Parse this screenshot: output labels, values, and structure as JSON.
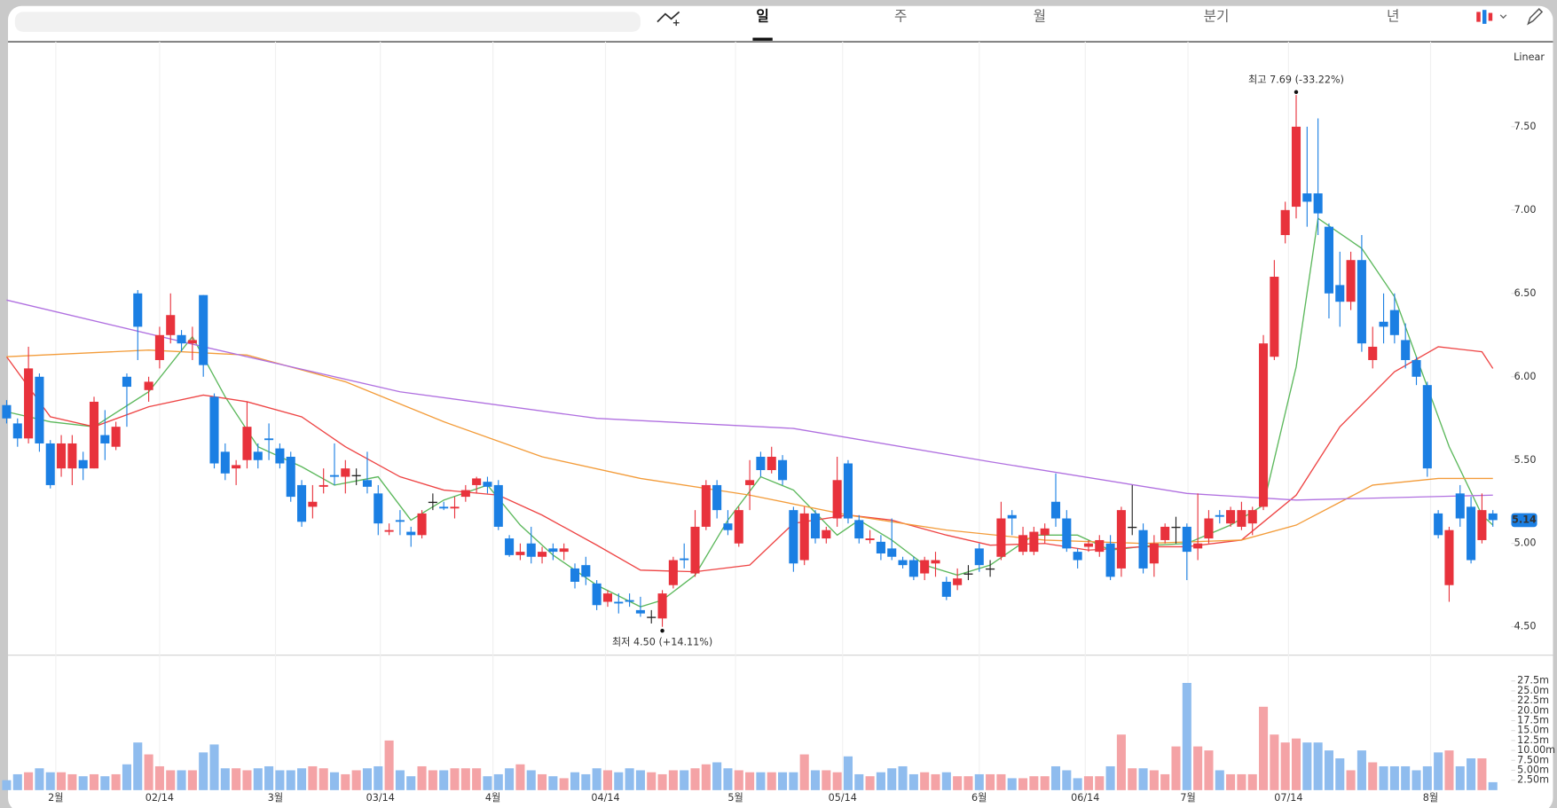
{
  "ui": {
    "tabs": [
      "일",
      "주",
      "월",
      "분기",
      "년"
    ],
    "scale_mode": "Linear"
  },
  "chart_data": {
    "type": "candlestick",
    "open": [
      5.83,
      5.72,
      5.63,
      6.0,
      5.6,
      5.45,
      5.45,
      5.5,
      5.45,
      5.65,
      5.58,
      6.0,
      6.5,
      5.92,
      6.1,
      6.25,
      6.25,
      6.2,
      6.49,
      5.88,
      5.55,
      5.45,
      5.5,
      5.55,
      5.63,
      5.57,
      5.52,
      5.35,
      5.22,
      5.34,
      5.41,
      5.4,
      5.41,
      5.38,
      5.3,
      5.07,
      5.14,
      5.07,
      5.05,
      5.25,
      5.22,
      5.21,
      5.28,
      5.35,
      5.37,
      5.35,
      5.03,
      4.93,
      5.0,
      4.92,
      4.97,
      4.95,
      4.85,
      4.87,
      4.76,
      4.65,
      4.65,
      4.66,
      4.6,
      4.56,
      4.55,
      4.75,
      4.91,
      4.82,
      5.1,
      5.35,
      5.12,
      5.0,
      5.35,
      5.52,
      5.44,
      5.5,
      5.2,
      4.9,
      5.18,
      5.03,
      5.15,
      5.48,
      5.14,
      5.02,
      5.01,
      4.97,
      4.9,
      4.9,
      4.82,
      4.88,
      4.77,
      4.75,
      4.82,
      4.97,
      4.85,
      4.92,
      5.17,
      4.95,
      4.95,
      5.05,
      5.25,
      5.15,
      4.95,
      4.98,
      4.95,
      5.0,
      4.85,
      5.1,
      5.08,
      4.88,
      5.02,
      5.1,
      5.1,
      4.97,
      5.03,
      5.17,
      5.12,
      5.1,
      5.12,
      5.22,
      6.12,
      6.85,
      7.02,
      7.1,
      7.1,
      6.9,
      6.55,
      6.45,
      6.7,
      6.1,
      6.33,
      6.4,
      6.22,
      6.1,
      5.95,
      5.18,
      4.75,
      5.3,
      5.22,
      5.02,
      5.18
    ],
    "high": [
      5.86,
      5.75,
      6.18,
      6.02,
      5.62,
      5.65,
      5.65,
      5.55,
      5.88,
      5.8,
      5.73,
      6.02,
      6.52,
      6.0,
      6.3,
      6.5,
      6.28,
      6.3,
      6.49,
      5.9,
      5.6,
      5.5,
      5.85,
      5.6,
      5.72,
      5.6,
      5.55,
      5.38,
      5.35,
      5.45,
      5.6,
      5.5,
      5.45,
      5.55,
      5.35,
      5.12,
      5.2,
      5.1,
      5.2,
      5.3,
      5.25,
      5.28,
      5.35,
      5.4,
      5.4,
      5.38,
      5.05,
      5.0,
      5.1,
      4.98,
      5.0,
      5.0,
      4.88,
      4.92,
      4.78,
      4.72,
      4.7,
      4.7,
      4.68,
      4.6,
      4.72,
      4.92,
      5.0,
      5.2,
      5.38,
      5.38,
      5.2,
      5.22,
      5.5,
      5.55,
      5.58,
      5.53,
      5.22,
      5.22,
      5.2,
      5.1,
      5.52,
      5.5,
      5.17,
      5.08,
      5.05,
      5.15,
      4.92,
      4.92,
      4.92,
      4.95,
      4.8,
      4.85,
      4.87,
      5.0,
      4.9,
      5.25,
      5.2,
      5.1,
      5.1,
      5.12,
      5.42,
      5.2,
      4.97,
      5.02,
      5.05,
      5.05,
      5.22,
      5.35,
      5.12,
      5.05,
      5.12,
      5.16,
      5.12,
      5.3,
      5.2,
      5.2,
      5.22,
      5.25,
      5.22,
      6.25,
      6.7,
      7.05,
      7.69,
      7.5,
      7.55,
      6.92,
      6.75,
      6.75,
      6.85,
      6.3,
      6.5,
      6.5,
      6.32,
      6.12,
      5.97,
      5.2,
      5.1,
      5.35,
      5.28,
      5.3,
      5.2
    ],
    "low": [
      5.72,
      5.58,
      5.6,
      5.55,
      5.33,
      5.4,
      5.35,
      5.38,
      5.45,
      5.5,
      5.56,
      5.7,
      6.1,
      5.85,
      6.05,
      6.2,
      6.15,
      6.1,
      6.0,
      5.45,
      5.38,
      5.35,
      5.45,
      5.45,
      5.5,
      5.45,
      5.25,
      5.1,
      5.15,
      5.3,
      5.35,
      5.3,
      5.35,
      5.3,
      5.05,
      5.05,
      5.05,
      4.98,
      5.03,
      5.2,
      5.2,
      5.15,
      5.25,
      5.3,
      5.3,
      5.08,
      4.92,
      4.9,
      4.88,
      4.88,
      4.9,
      4.9,
      4.73,
      4.75,
      4.6,
      4.62,
      4.58,
      4.62,
      4.56,
      4.52,
      4.5,
      4.73,
      4.85,
      4.8,
      5.08,
      5.15,
      5.05,
      4.98,
      5.2,
      5.4,
      5.42,
      5.35,
      4.83,
      4.87,
      5.0,
      5.0,
      5.1,
      5.12,
      5.0,
      5.0,
      4.9,
      4.9,
      4.85,
      4.78,
      4.78,
      4.8,
      4.66,
      4.72,
      4.78,
      4.83,
      4.8,
      4.9,
      5.05,
      4.93,
      4.93,
      5.0,
      5.1,
      4.95,
      4.85,
      4.95,
      4.92,
      4.78,
      4.8,
      5.05,
      4.82,
      4.8,
      5.0,
      5.0,
      4.78,
      4.9,
      5.0,
      5.12,
      5.1,
      5.08,
      5.05,
      5.2,
      6.1,
      6.8,
      6.95,
      6.9,
      6.85,
      6.35,
      6.3,
      6.4,
      6.15,
      6.05,
      6.2,
      6.2,
      6.05,
      5.95,
      5.4,
      5.03,
      4.65,
      5.1,
      4.88,
      5.0,
      5.1
    ],
    "close": [
      5.75,
      5.63,
      6.05,
      5.6,
      5.35,
      5.6,
      5.6,
      5.45,
      5.85,
      5.6,
      5.7,
      5.94,
      6.3,
      5.97,
      6.25,
      6.37,
      6.2,
      6.22,
      6.07,
      5.48,
      5.42,
      5.47,
      5.7,
      5.5,
      5.62,
      5.48,
      5.28,
      5.13,
      5.25,
      5.35,
      5.4,
      5.45,
      5.41,
      5.34,
      5.12,
      5.08,
      5.13,
      5.05,
      5.18,
      5.25,
      5.21,
      5.22,
      5.32,
      5.39,
      5.34,
      5.1,
      4.93,
      4.95,
      4.92,
      4.95,
      4.95,
      4.97,
      4.77,
      4.8,
      4.63,
      4.7,
      4.64,
      4.65,
      4.58,
      4.56,
      4.7,
      4.9,
      4.9,
      5.1,
      5.35,
      5.2,
      5.08,
      5.2,
      5.38,
      5.44,
      5.52,
      5.38,
      4.88,
      5.18,
      5.03,
      5.08,
      5.38,
      5.15,
      5.03,
      5.03,
      4.94,
      4.92,
      4.87,
      4.8,
      4.9,
      4.9,
      4.68,
      4.79,
      4.82,
      4.87,
      4.85,
      5.15,
      5.15,
      5.05,
      5.07,
      5.09,
      5.15,
      4.97,
      4.9,
      5.0,
      5.02,
      4.8,
      5.2,
      5.1,
      4.85,
      5.0,
      5.1,
      5.1,
      4.95,
      5.0,
      5.15,
      5.16,
      5.2,
      5.2,
      5.2,
      6.2,
      6.6,
      7.0,
      7.5,
      7.05,
      6.98,
      6.5,
      6.45,
      6.7,
      6.2,
      6.18,
      6.3,
      6.25,
      6.1,
      6.0,
      5.45,
      5.05,
      5.08,
      5.15,
      4.9,
      5.2,
      5.14
    ],
    "volume": [
      2.5,
      4,
      4.5,
      5.5,
      4.5,
      4.5,
      4,
      3.5,
      4,
      3.5,
      4,
      6.5,
      12,
      9,
      6,
      5,
      5,
      5,
      9.5,
      11.5,
      5.5,
      5.5,
      5,
      5.5,
      6,
      5,
      5,
      5.5,
      6,
      5.5,
      4.5,
      4,
      5,
      5.5,
      6,
      12.5,
      5,
      3.5,
      6,
      5,
      5,
      5.5,
      5.5,
      5.5,
      3.5,
      4,
      5.5,
      6.5,
      5,
      4,
      3.5,
      3,
      4.5,
      4,
      5.5,
      5,
      4.5,
      5.5,
      5,
      4.5,
      4,
      5,
      5,
      5.5,
      6.5,
      7,
      5.5,
      5,
      4.5,
      4.5,
      4.5,
      4.5,
      4.5,
      9,
      5,
      5,
      4.5,
      8.5,
      4,
      3.5,
      4.5,
      5.5,
      6,
      4,
      4.5,
      4,
      4.5,
      3.5,
      3.5,
      4,
      4,
      4,
      3,
      3,
      3.5,
      3.5,
      6,
      5,
      3,
      3.5,
      3.5,
      6,
      14,
      5.5,
      5.5,
      5,
      4,
      11,
      27,
      11,
      10,
      5,
      4,
      4,
      4,
      21,
      14,
      12,
      13,
      12,
      12,
      10,
      8,
      5,
      10,
      7,
      6,
      6,
      6,
      5,
      6,
      9.5,
      10,
      6,
      8,
      8,
      2
    ],
    "up_color": "#e8323c",
    "down_color": "#1b7fe3",
    "flat_color": "#222222",
    "volume_up_color": "#f4a3a6",
    "volume_down_color": "#8fbcee",
    "series": [
      {
        "color": "#5cb85c",
        "x": [
          0,
          4,
          8,
          13,
          17,
          20,
          23,
          27,
          30,
          34,
          37,
          40,
          44,
          47,
          50,
          54,
          58,
          60,
          63,
          66,
          69,
          72,
          76,
          78,
          81,
          84,
          87,
          90,
          94,
          98,
          101,
          105,
          108,
          112,
          115,
          118,
          120,
          124,
          127,
          129,
          132,
          135,
          136
        ],
        "values": [
          5.79,
          5.73,
          5.7,
          5.91,
          6.24,
          5.88,
          5.58,
          5.46,
          5.35,
          5.4,
          5.14,
          5.26,
          5.35,
          5.11,
          4.93,
          4.75,
          4.62,
          4.66,
          4.81,
          5.14,
          5.4,
          5.32,
          5.05,
          5.14,
          5.02,
          4.87,
          4.81,
          4.87,
          5.05,
          5.05,
          4.96,
          4.99,
          5.0,
          5.11,
          5.23,
          6.06,
          6.95,
          6.77,
          6.48,
          6.12,
          5.58,
          5.17,
          5.11
        ]
      },
      {
        "color": "#ee4444",
        "x": [
          0,
          4,
          8,
          13,
          18,
          22,
          27,
          31,
          36,
          40,
          45,
          49,
          54,
          58,
          63,
          68,
          72,
          77,
          81,
          86,
          90,
          95,
          99,
          104,
          108,
          113,
          118,
          122,
          127,
          131,
          135,
          136
        ],
        "values": [
          6.12,
          5.76,
          5.7,
          5.82,
          5.89,
          5.85,
          5.76,
          5.58,
          5.4,
          5.32,
          5.29,
          5.17,
          4.99,
          4.84,
          4.83,
          4.87,
          5.12,
          5.17,
          5.14,
          5.05,
          4.99,
          5.0,
          4.96,
          4.98,
          4.98,
          5.02,
          5.29,
          5.7,
          6.03,
          6.18,
          6.15,
          6.05
        ]
      },
      {
        "color": "#f39c3a",
        "x": [
          0,
          13,
          22,
          31,
          40,
          49,
          58,
          68,
          77,
          86,
          95,
          104,
          113,
          118,
          125,
          131,
          136
        ],
        "values": [
          6.12,
          6.16,
          6.13,
          5.97,
          5.73,
          5.52,
          5.39,
          5.29,
          5.17,
          5.08,
          5.02,
          5.0,
          5.02,
          5.11,
          5.35,
          5.39,
          5.39
        ]
      },
      {
        "color": "#b070e0",
        "x": [
          0,
          18,
          36,
          54,
          72,
          90,
          108,
          118,
          136
        ],
        "values": [
          6.46,
          6.18,
          5.91,
          5.75,
          5.69,
          5.49,
          5.3,
          5.26,
          5.29
        ]
      }
    ],
    "xlim": [
      -0.6,
      137.5
    ],
    "xticks": [
      {
        "value": 4.5,
        "label": "2월"
      },
      {
        "value": 14,
        "label": "02/14"
      },
      {
        "value": 24.6,
        "label": "3월"
      },
      {
        "value": 34.2,
        "label": "03/14"
      },
      {
        "value": 44.5,
        "label": "4월"
      },
      {
        "value": 54.8,
        "label": "04/14"
      },
      {
        "value": 66.7,
        "label": "5월"
      },
      {
        "value": 76.5,
        "label": "05/14"
      },
      {
        "value": 89,
        "label": "6월"
      },
      {
        "value": 98.7,
        "label": "06/14"
      },
      {
        "value": 108.1,
        "label": "7월"
      },
      {
        "value": 117.3,
        "label": "07/14"
      },
      {
        "value": 130.3,
        "label": "8월"
      }
    ],
    "ylim": [
      4.33,
      8.01
    ],
    "yticks": [
      {
        "value": 4.5,
        "label": "4.50"
      },
      {
        "value": 5,
        "label": "5.00"
      },
      {
        "value": 5.5,
        "label": "5.50"
      },
      {
        "value": 6,
        "label": "6.00"
      },
      {
        "value": 6.5,
        "label": "6.50"
      },
      {
        "value": 7,
        "label": "7.00"
      },
      {
        "value": 7.5,
        "label": "7.50"
      }
    ],
    "volume_ylim": [
      0,
      34
    ],
    "volume_yticks": [
      {
        "value": 2.5,
        "label": "2.50m"
      },
      {
        "value": 5,
        "label": "5.00m"
      },
      {
        "value": 7.5,
        "label": "7.50m"
      },
      {
        "value": 10,
        "label": "10.00m"
      },
      {
        "value": 12.5,
        "label": "12.5m"
      },
      {
        "value": 15,
        "label": "15.0m"
      },
      {
        "value": 17.5,
        "label": "17.5m"
      },
      {
        "value": 20,
        "label": "20.0m"
      },
      {
        "value": 22.5,
        "label": "22.5m"
      },
      {
        "value": 25,
        "label": "25.0m"
      },
      {
        "value": 27.5,
        "label": "27.5m"
      }
    ],
    "last_price": 5.14,
    "annotations": [
      {
        "text": "최고 7.69 (-33.22%)",
        "index": 118,
        "value": 7.69,
        "side": "top"
      },
      {
        "text": "최저 4.50 (+14.11%)",
        "index": 60,
        "value": 4.5,
        "side": "bottom"
      }
    ]
  }
}
